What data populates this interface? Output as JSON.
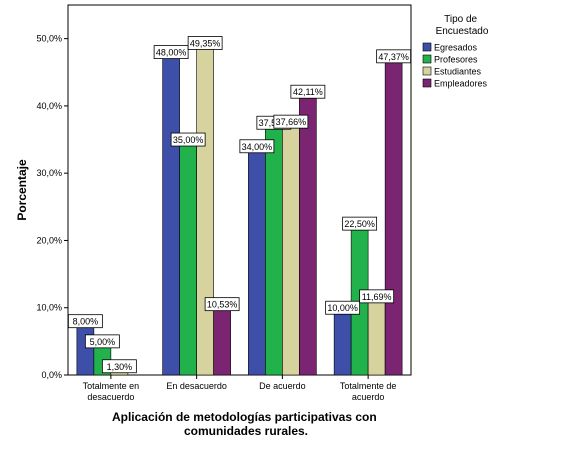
{
  "chart_data": {
    "type": "bar",
    "categories": [
      [
        "Totalmente en",
        "desacuerdo"
      ],
      [
        "En desacuerdo"
      ],
      [
        "De acuerdo"
      ],
      [
        "Totalmente de",
        "acuerdo"
      ]
    ],
    "series": [
      {
        "name": "Egresados",
        "color": "#3d4fa8",
        "values": [
          8.0,
          48.0,
          34.0,
          10.0
        ],
        "labels": [
          "8,00%",
          "48,00%",
          "34,00%",
          "10,00%"
        ]
      },
      {
        "name": "Profesores",
        "color": "#22b24c",
        "values": [
          5.0,
          35.0,
          37.5,
          22.5
        ],
        "labels": [
          "5,00%",
          "35,00%",
          "37,50%",
          "22,50%"
        ]
      },
      {
        "name": "Estudiantes",
        "color": "#d6d39e",
        "values": [
          1.3,
          49.35,
          37.66,
          11.69
        ],
        "labels": [
          "1,30%",
          "49,35%",
          "37,66%",
          "11,69%"
        ]
      },
      {
        "name": "Empleadores",
        "color": "#7a2472",
        "values": [
          0,
          10.53,
          42.11,
          47.37
        ],
        "labels": [
          null,
          "10,53%",
          "42,11%",
          "47,37%"
        ]
      }
    ],
    "ylim": [
      0,
      55
    ],
    "yticks": [
      0,
      10,
      20,
      30,
      40,
      50
    ],
    "ytick_labels": [
      "0,0%",
      "10,0%",
      "20,0%",
      "30,0%",
      "40,0%",
      "50,0%"
    ],
    "ylabel": "Porcentaje",
    "xlabel": [
      "Aplicación de metodologías participativas con",
      "comunidades rurales."
    ],
    "legend_title": [
      "Tipo de",
      "Encuestado"
    ],
    "legend_position": "right",
    "grid": false
  }
}
